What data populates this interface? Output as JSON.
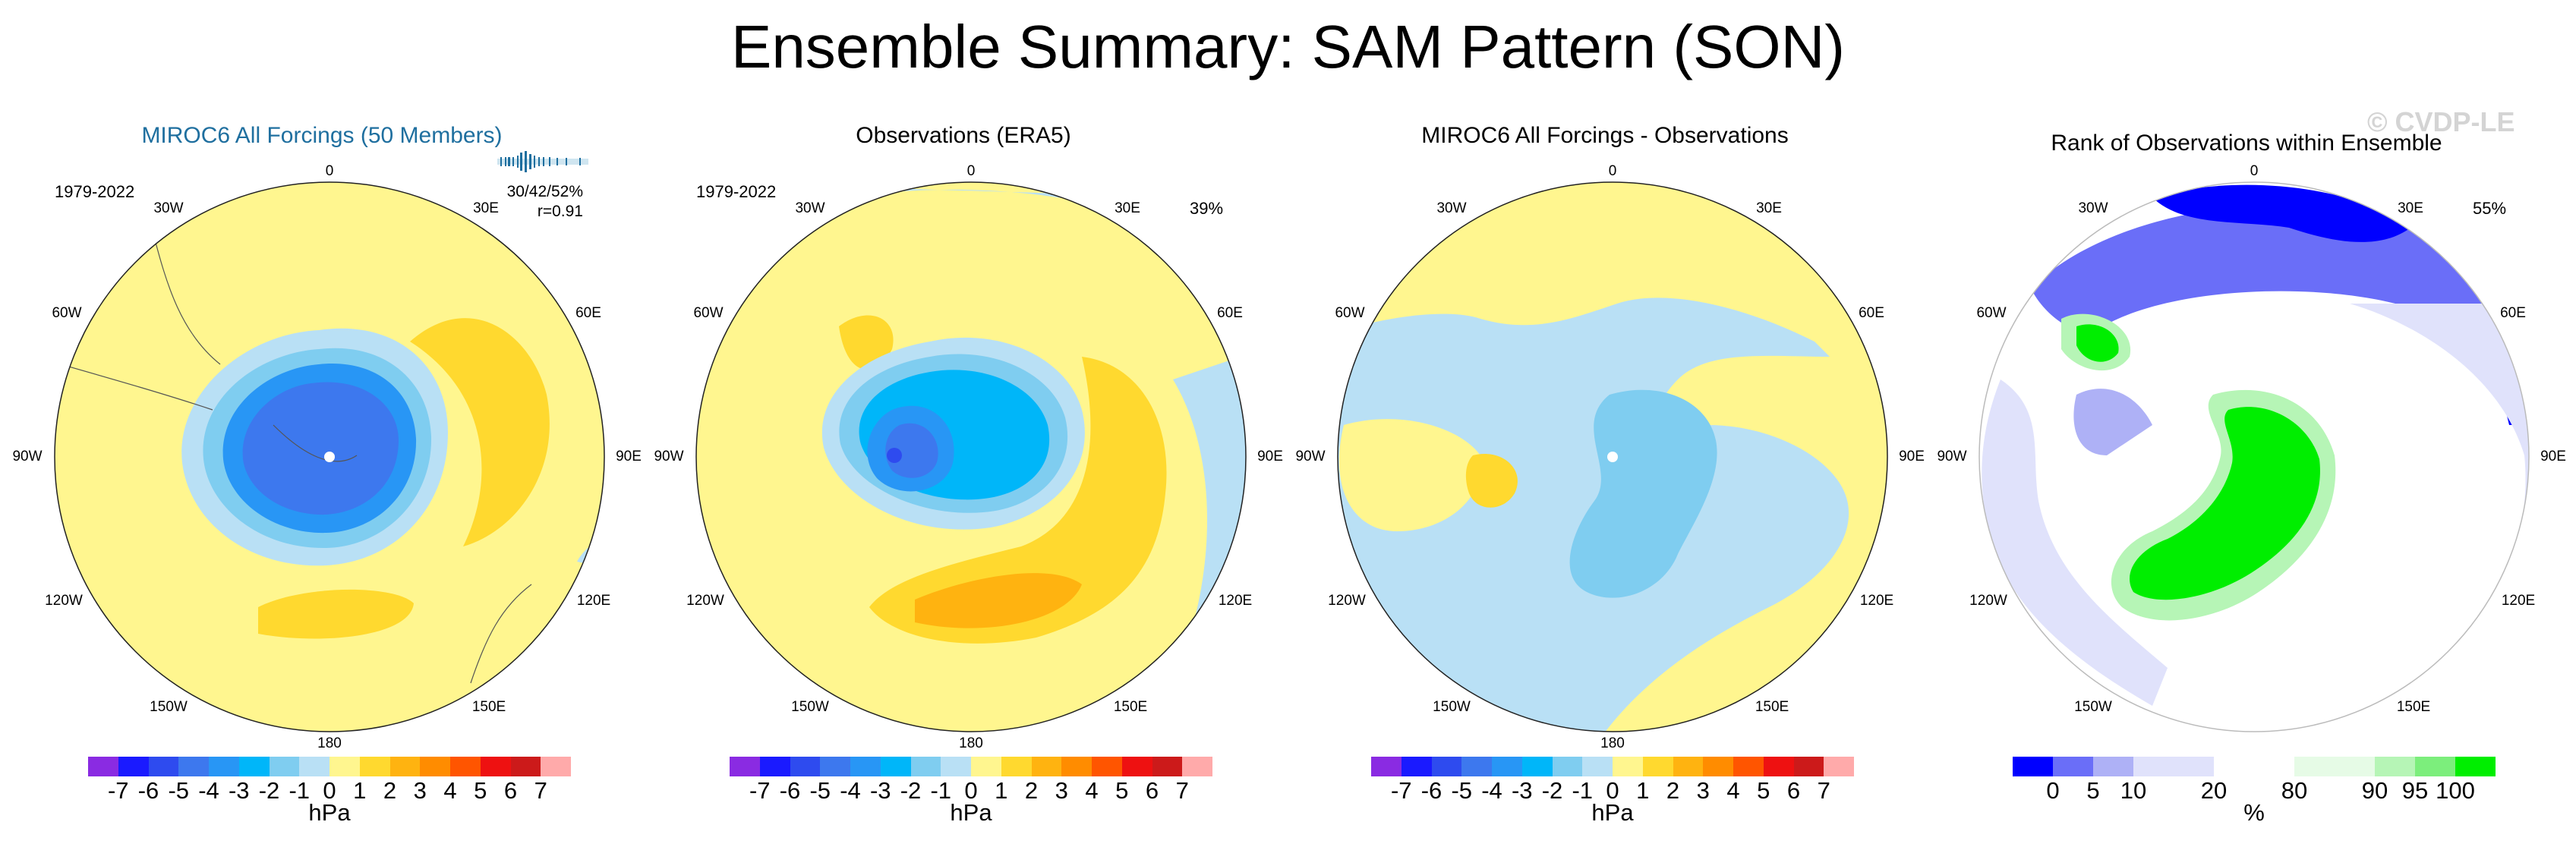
{
  "title": "Ensemble Summary: SAM Pattern (SON)",
  "watermark": "© CVDP-LE",
  "lon_labels": [
    "0",
    "30E",
    "60E",
    "90E",
    "120E",
    "150E",
    "180",
    "150W",
    "120W",
    "90W",
    "60W",
    "30W"
  ],
  "panels": [
    {
      "title": "MIROC6 All Forcings (50 Members)",
      "period": "1979-2022",
      "stats_line1": "30/42/52%",
      "stats_line2": "r=0.91"
    },
    {
      "title": "Observations (ERA5)",
      "period": "1979-2022",
      "pct": "39%"
    },
    {
      "title": "MIROC6 All Forcings - Observations"
    },
    {
      "title": "Rank of Observations within Ensemble",
      "pct": "55%"
    }
  ],
  "colorbar_hpa": {
    "colors": [
      "#8a2be2",
      "#1a1aff",
      "#2e4bef",
      "#3d78ee",
      "#2896f5",
      "#00b6f9",
      "#7fcdf0",
      "#b9e0f5",
      "#fff68f",
      "#ffd92f",
      "#ffb310",
      "#ff8c00",
      "#ff5500",
      "#ee1111",
      "#cc1a1a",
      "#ffaaaa"
    ],
    "ticks": [
      "-7",
      "-6",
      "-5",
      "-4",
      "-3",
      "-2",
      "-1",
      "0",
      "1",
      "2",
      "3",
      "4",
      "5",
      "6",
      "7"
    ],
    "unit": "hPa"
  },
  "colorbar_rank": {
    "colors": [
      "#0000ff",
      "#6a6ef8",
      "#aeb1f6",
      "#e0e2fb",
      "#e0e2fb",
      "#ffffff",
      "#ffffff",
      "#e6fbe6",
      "#e6fbe6",
      "#b6f5b6",
      "#7cee7c",
      "#00ee00"
    ],
    "ticks": [
      "0",
      "5",
      "10",
      "20",
      "80",
      "90",
      "95",
      "100"
    ],
    "unit": "%"
  }
}
